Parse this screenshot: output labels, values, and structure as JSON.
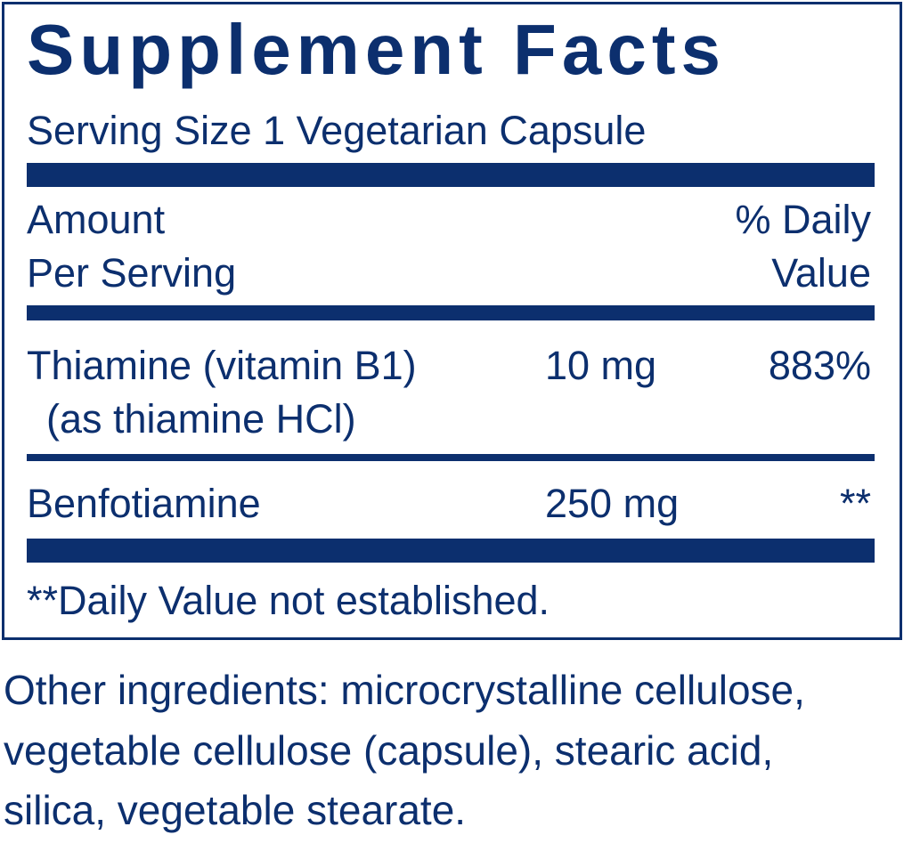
{
  "label": {
    "title": "Supplement Facts",
    "serving_size": "Serving Size 1 Vegetarian Capsule",
    "header": {
      "amount_line1": "Amount",
      "amount_line2": "Per Serving",
      "dv_line1": "% Daily",
      "dv_line2": "Value"
    },
    "rows": [
      {
        "name": "Thiamine (vitamin B1)",
        "sub": "(as thiamine HCl)",
        "amount": "10 mg",
        "dv": "883%"
      },
      {
        "name": "Benfotiamine",
        "amount": "250 mg",
        "dv": "**"
      }
    ],
    "footnote": "**Daily Value not established."
  },
  "other_ingredients": {
    "line1": "Other ingredients: microcrystalline cellulose,",
    "line2": "vegetable cellulose (capsule), stearic acid,",
    "line3": "silica, vegetable stearate."
  },
  "colors": {
    "ink": "#0c2f6e",
    "background": "#ffffff"
  }
}
